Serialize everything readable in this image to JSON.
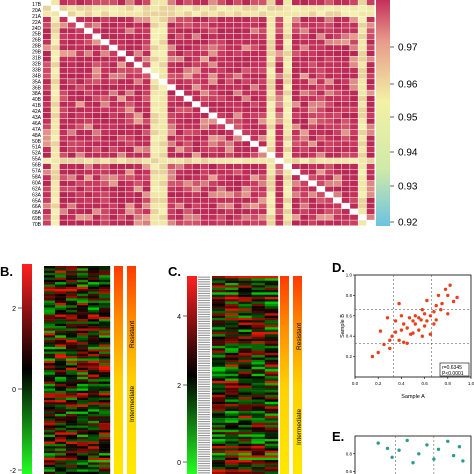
{
  "panelA": {
    "row_labels": [
      "17B",
      "20A",
      "21A",
      "22A",
      "24D",
      "25B",
      "26B",
      "28B",
      "29B",
      "31B",
      "32B",
      "33B",
      "34B",
      "35A",
      "36B",
      "38A",
      "40B",
      "41B",
      "42A",
      "43A",
      "46A",
      "47A",
      "48A",
      "50B",
      "51A",
      "52A",
      "55A",
      "56B",
      "57A",
      "58A",
      "60A",
      "62A",
      "63A",
      "65A",
      "66A",
      "68A",
      "69B",
      "70B"
    ],
    "colorbar_ticks": [
      "0.97",
      "0.96",
      "0.95",
      "0.94",
      "0.93",
      "0.92"
    ],
    "colors": {
      "low": "#6bc3e0",
      "mid": "#f2f2a6",
      "high": "#c4305a",
      "border": "#ffffff"
    }
  },
  "panelB": {
    "letter": "B.",
    "axis_ticks": [
      "2",
      "0",
      "-2"
    ],
    "bar_labels": {
      "resistant": "Resistant",
      "intermediate": "Intermediate"
    }
  },
  "panelC": {
    "letter": "C.",
    "axis_ticks": [
      "4",
      "2",
      "0"
    ],
    "bar_labels": {
      "resistant": "Resistant",
      "intermediate": "Intermediate"
    }
  },
  "panelD": {
    "letter": "D.",
    "annotation_r": "r=0.6345",
    "annotation_p": "P<0.0001",
    "chart_data": {
      "type": "scatter",
      "title": "",
      "xlabel": "Sample A",
      "ylabel": "Sample B",
      "xlim": [
        0,
        1.0
      ],
      "ylim": [
        0,
        1.0
      ],
      "x_ticks": [
        "0.0",
        "0.2",
        "0.4",
        "0.6",
        "0.8",
        "1.0"
      ],
      "y_ticks": [
        "0.2",
        "0.4",
        "0.6",
        "0.8",
        "1.0"
      ],
      "color": "#e8401c",
      "points": [
        [
          0.15,
          0.2
        ],
        [
          0.2,
          0.24
        ],
        [
          0.25,
          0.32
        ],
        [
          0.22,
          0.45
        ],
        [
          0.3,
          0.28
        ],
        [
          0.3,
          0.36
        ],
        [
          0.32,
          0.4
        ],
        [
          0.35,
          0.44
        ],
        [
          0.35,
          0.55
        ],
        [
          0.38,
          0.36
        ],
        [
          0.4,
          0.6
        ],
        [
          0.4,
          0.46
        ],
        [
          0.42,
          0.34
        ],
        [
          0.42,
          0.52
        ],
        [
          0.45,
          0.48
        ],
        [
          0.45,
          0.33
        ],
        [
          0.47,
          0.58
        ],
        [
          0.5,
          0.43
        ],
        [
          0.5,
          0.55
        ],
        [
          0.52,
          0.52
        ],
        [
          0.52,
          0.6
        ],
        [
          0.55,
          0.46
        ],
        [
          0.55,
          0.58
        ],
        [
          0.57,
          0.56
        ],
        [
          0.58,
          0.4
        ],
        [
          0.6,
          0.62
        ],
        [
          0.6,
          0.5
        ],
        [
          0.62,
          0.55
        ],
        [
          0.62,
          0.75
        ],
        [
          0.65,
          0.6
        ],
        [
          0.65,
          0.42
        ],
        [
          0.68,
          0.64
        ],
        [
          0.7,
          0.7
        ],
        [
          0.7,
          0.56
        ],
        [
          0.72,
          0.8
        ],
        [
          0.74,
          0.66
        ],
        [
          0.75,
          0.72
        ],
        [
          0.78,
          0.86
        ],
        [
          0.8,
          0.8
        ],
        [
          0.8,
          0.62
        ],
        [
          0.82,
          0.9
        ],
        [
          0.85,
          0.74
        ],
        [
          0.88,
          0.78
        ],
        [
          0.38,
          0.72
        ],
        [
          0.28,
          0.58
        ],
        [
          0.48,
          0.42
        ],
        [
          0.58,
          0.66
        ],
        [
          0.68,
          0.52
        ]
      ]
    }
  },
  "panelE": {
    "letter": "E.",
    "chart_data": {
      "type": "scatter",
      "title": "",
      "xlabel": "",
      "ylabel": "",
      "y_ticks": [
        "0.8",
        "0.6"
      ],
      "color": "#2a9d8f",
      "points": [
        [
          0.2,
          0.92
        ],
        [
          0.32,
          0.76
        ],
        [
          0.38,
          0.84
        ],
        [
          0.45,
          0.95
        ],
        [
          0.55,
          0.8
        ],
        [
          0.62,
          0.9
        ],
        [
          0.68,
          0.74
        ],
        [
          0.72,
          0.85
        ],
        [
          0.8,
          0.94
        ],
        [
          0.85,
          0.78
        ],
        [
          0.9,
          0.88
        ],
        [
          0.93,
          0.72
        ],
        [
          0.5,
          0.7
        ],
        [
          0.28,
          0.86
        ]
      ]
    }
  }
}
